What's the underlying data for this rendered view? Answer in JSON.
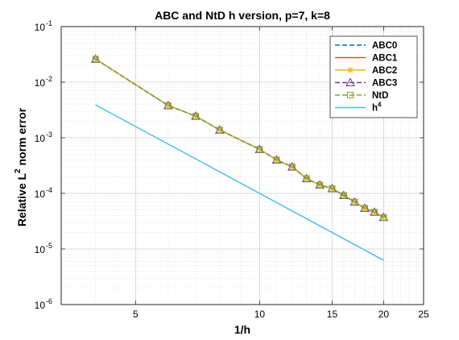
{
  "chart_data": {
    "type": "line",
    "title": "ABC and NtD h version, p=7, k=8",
    "xlabel": "1/h",
    "ylabel_main": "Relative L",
    "ylabel_sup": "2",
    "ylabel_rest": " norm error",
    "xscale": "log",
    "yscale": "log",
    "xlim": [
      3.3,
      25
    ],
    "ylim": [
      1e-06,
      0.1
    ],
    "x_ticks": [
      {
        "value": 5,
        "label": "5"
      },
      {
        "value": 10,
        "label": "10"
      },
      {
        "value": 15,
        "label": "15"
      },
      {
        "value": 20,
        "label": "20"
      },
      {
        "value": 25,
        "label": "25"
      }
    ],
    "y_ticks": [
      {
        "value": 1e-06,
        "base": "10",
        "exp": "-6"
      },
      {
        "value": 1e-05,
        "base": "10",
        "exp": "-5"
      },
      {
        "value": 0.0001,
        "base": "10",
        "exp": "-4"
      },
      {
        "value": 0.001,
        "base": "10",
        "exp": "-3"
      },
      {
        "value": 0.01,
        "base": "10",
        "exp": "-2"
      },
      {
        "value": 0.1,
        "base": "10",
        "exp": "-1"
      }
    ],
    "grid": true,
    "minor_grid": true,
    "legend_position": "top-right",
    "x": [
      4,
      6,
      7,
      8,
      10,
      11,
      12,
      13,
      14,
      15,
      16,
      17,
      18,
      19,
      20
    ],
    "series": [
      {
        "name": "ABC0",
        "color": "#0072BD",
        "style": "dashed",
        "marker": "none",
        "values": [
          0.026,
          0.0038,
          0.00245,
          0.00138,
          0.00062,
          0.0004,
          0.0003,
          0.000185,
          0.000142,
          0.000122,
          9.2e-05,
          7e-05,
          5.4e-05,
          4.6e-05,
          3.7e-05
        ]
      },
      {
        "name": "ABC1",
        "color": "#D95319",
        "style": "solid",
        "marker": "none",
        "values": [
          0.026,
          0.0038,
          0.00245,
          0.00138,
          0.00062,
          0.0004,
          0.0003,
          0.000185,
          0.000142,
          0.000122,
          9.2e-05,
          7e-05,
          5.4e-05,
          4.6e-05,
          3.7e-05
        ]
      },
      {
        "name": "ABC2",
        "color": "#EDB120",
        "style": "solid",
        "marker": "star",
        "values": [
          0.026,
          0.0038,
          0.00245,
          0.00138,
          0.00062,
          0.0004,
          0.0003,
          0.000185,
          0.000142,
          0.000122,
          9.2e-05,
          7e-05,
          5.4e-05,
          4.6e-05,
          3.7e-05
        ]
      },
      {
        "name": "ABC3",
        "color": "#7E2F8E",
        "style": "dashed",
        "marker": "triangle",
        "values": [
          0.026,
          0.0038,
          0.00245,
          0.00138,
          0.00062,
          0.0004,
          0.0003,
          0.000185,
          0.000142,
          0.000122,
          9.2e-05,
          7e-05,
          5.4e-05,
          4.6e-05,
          3.7e-05
        ]
      },
      {
        "name": "NtD",
        "color": "#77AC30",
        "style": "dashed",
        "marker": "square",
        "values": [
          0.026,
          0.0038,
          0.00245,
          0.00138,
          0.00062,
          0.0004,
          0.0003,
          0.000185,
          0.000142,
          0.000122,
          9.2e-05,
          7e-05,
          5.4e-05,
          4.6e-05,
          3.7e-05
        ]
      },
      {
        "name": "h",
        "name_sup": "4",
        "color": "#4DBEEE",
        "style": "solid",
        "marker": "none",
        "x": [
          4,
          20
        ],
        "values": [
          0.0039,
          6.25e-06
        ]
      }
    ]
  }
}
